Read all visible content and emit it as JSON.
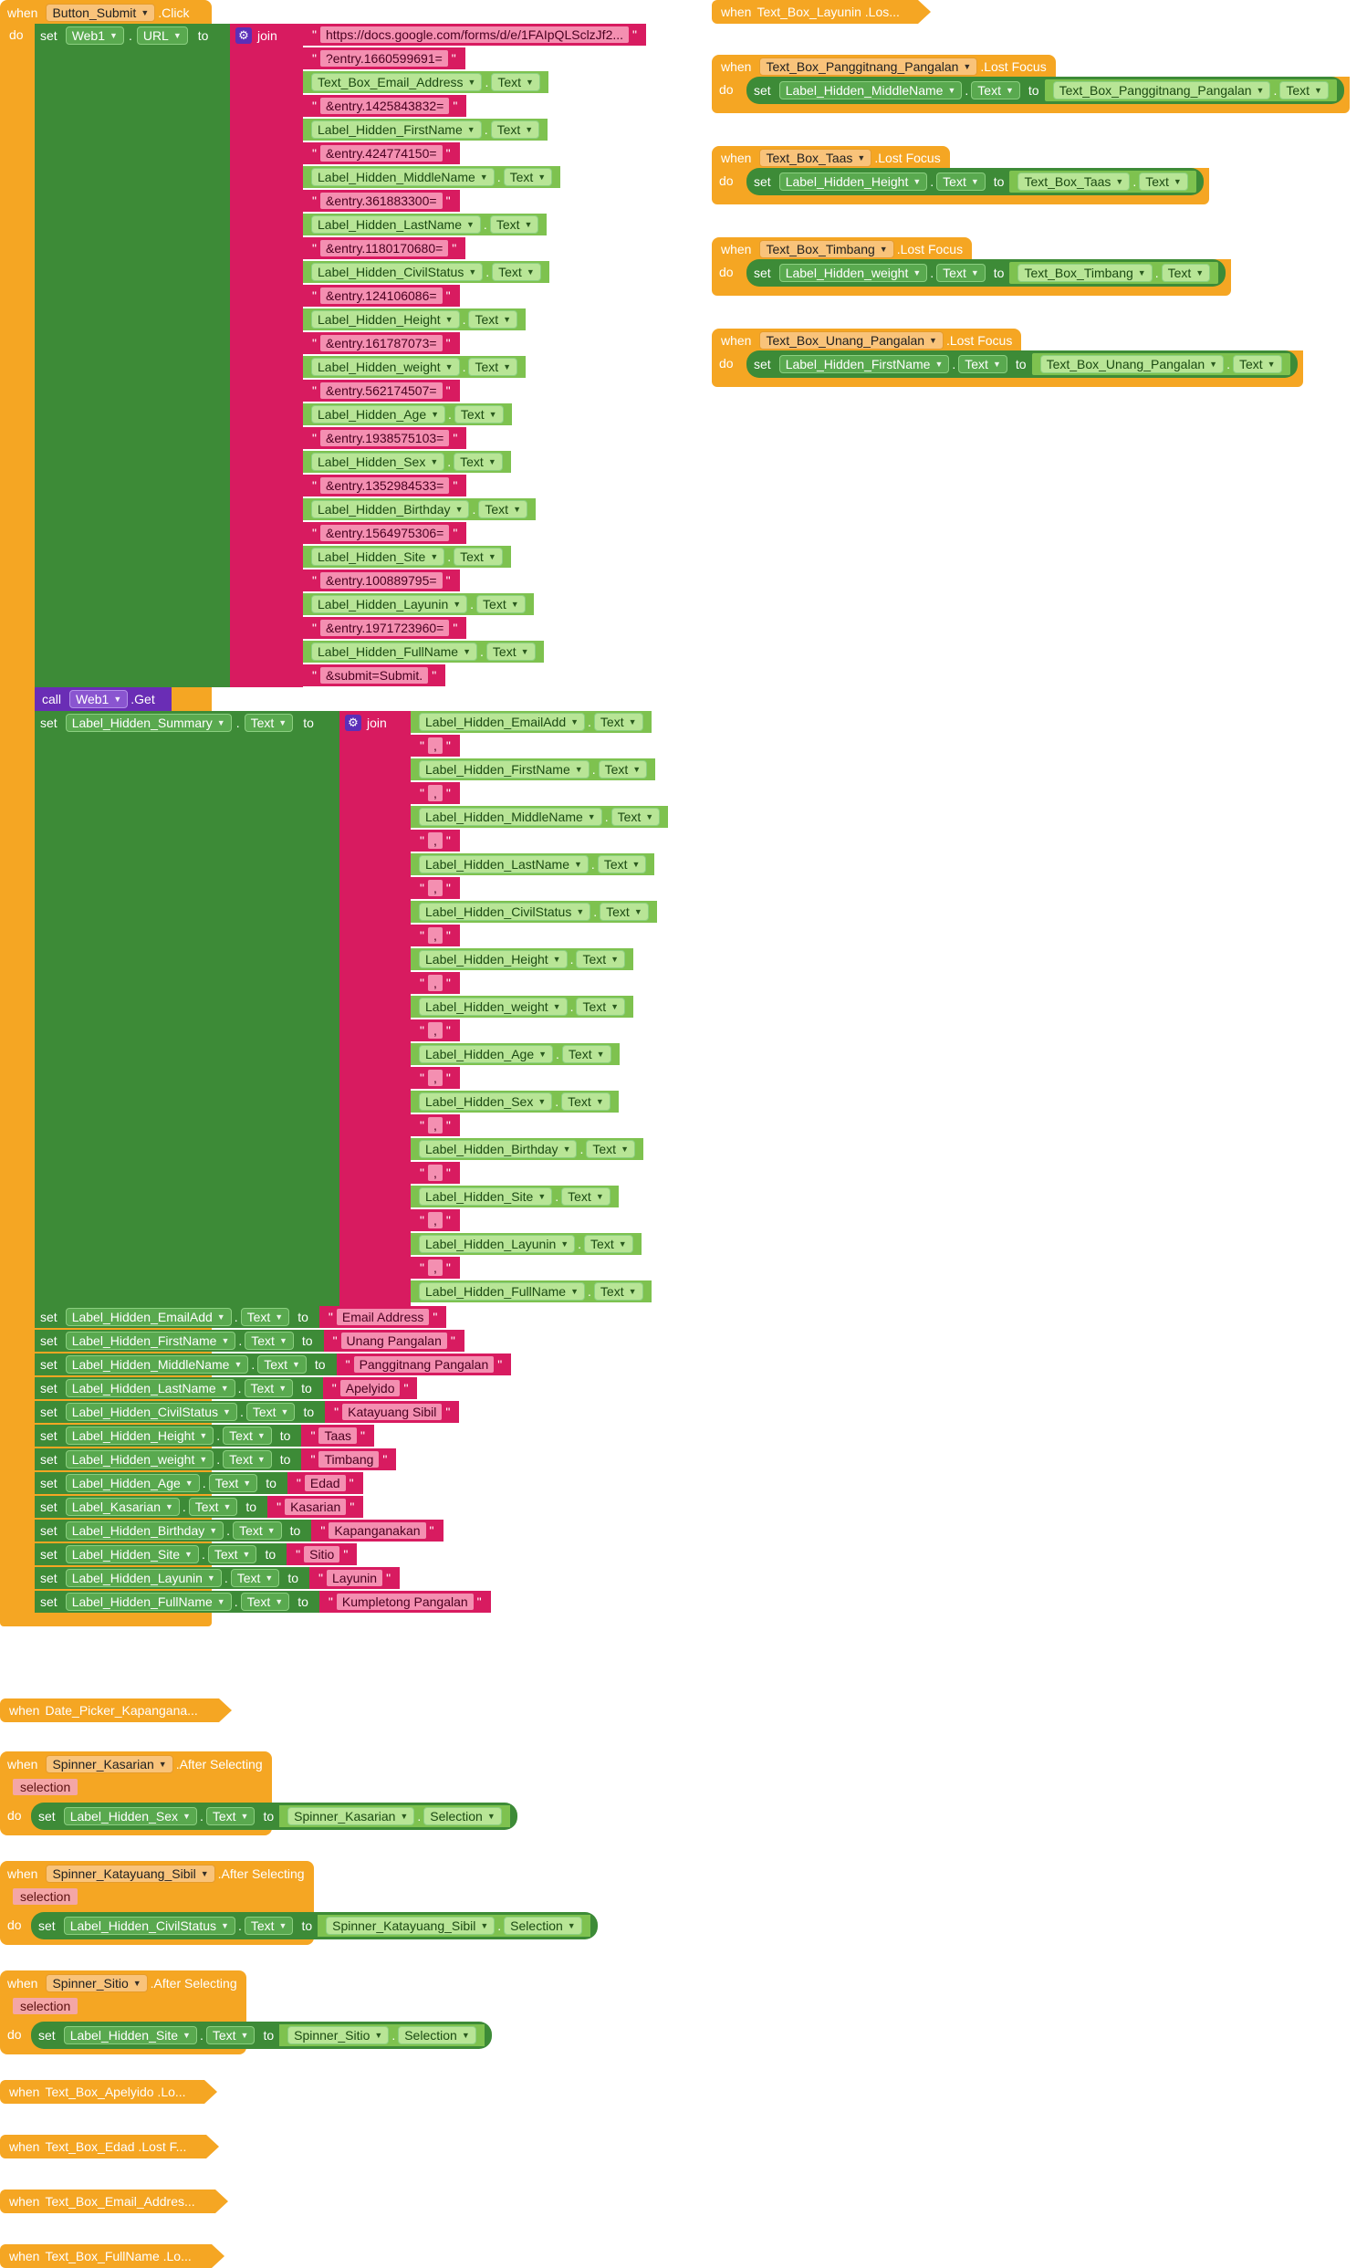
{
  "kw": {
    "when": "when",
    "do": "do",
    "set": "set",
    "to": "to",
    "call": "call",
    "join": "join"
  },
  "submit": {
    "component": "Button_Submit",
    "event": ".Click",
    "web": "Web1",
    "prop": "URL",
    "url_parts": [
      {
        "type": "str",
        "v": "https://docs.google.com/forms/d/e/1FAIpQLSclzJf2..."
      },
      {
        "type": "str",
        "v": "?entry.1660599691="
      },
      {
        "type": "comp",
        "c": "Text_Box_Email_Address",
        "p": "Text"
      },
      {
        "type": "str",
        "v": "&entry.1425843832="
      },
      {
        "type": "comp",
        "c": "Label_Hidden_FirstName",
        "p": "Text"
      },
      {
        "type": "str",
        "v": "&entry.424774150="
      },
      {
        "type": "comp",
        "c": "Label_Hidden_MiddleName",
        "p": "Text"
      },
      {
        "type": "str",
        "v": "&entry.361883300="
      },
      {
        "type": "comp",
        "c": "Label_Hidden_LastName",
        "p": "Text"
      },
      {
        "type": "str",
        "v": "&entry.1180170680="
      },
      {
        "type": "comp",
        "c": "Label_Hidden_CivilStatus",
        "p": "Text"
      },
      {
        "type": "str",
        "v": "&entry.124106086="
      },
      {
        "type": "comp",
        "c": "Label_Hidden_Height",
        "p": "Text"
      },
      {
        "type": "str",
        "v": "&entry.161787073="
      },
      {
        "type": "comp",
        "c": "Label_Hidden_weight",
        "p": "Text"
      },
      {
        "type": "str",
        "v": "&entry.562174507="
      },
      {
        "type": "comp",
        "c": "Label_Hidden_Age",
        "p": "Text"
      },
      {
        "type": "str",
        "v": "&entry.1938575103="
      },
      {
        "type": "comp",
        "c": "Label_Hidden_Sex",
        "p": "Text"
      },
      {
        "type": "str",
        "v": "&entry.1352984533="
      },
      {
        "type": "comp",
        "c": "Label_Hidden_Birthday",
        "p": "Text"
      },
      {
        "type": "str",
        "v": "&entry.1564975306="
      },
      {
        "type": "comp",
        "c": "Label_Hidden_Site",
        "p": "Text"
      },
      {
        "type": "str",
        "v": "&entry.100889795="
      },
      {
        "type": "comp",
        "c": "Label_Hidden_Layunin",
        "p": "Text"
      },
      {
        "type": "str",
        "v": "&entry.1971723960="
      },
      {
        "type": "comp",
        "c": "Label_Hidden_FullName",
        "p": "Text"
      },
      {
        "type": "str",
        "v": "&submit=Submit."
      }
    ],
    "call_method": ".Get",
    "summary_comp": "Label_Hidden_Summary",
    "summary_prop": "Text",
    "summary_parts": [
      {
        "type": "comp",
        "c": "Label_Hidden_EmailAdd",
        "p": "Text"
      },
      {
        "type": "str",
        "v": ","
      },
      {
        "type": "comp",
        "c": "Label_Hidden_FirstName",
        "p": "Text"
      },
      {
        "type": "str",
        "v": ","
      },
      {
        "type": "comp",
        "c": "Label_Hidden_MiddleName",
        "p": "Text"
      },
      {
        "type": "str",
        "v": ","
      },
      {
        "type": "comp",
        "c": "Label_Hidden_LastName",
        "p": "Text"
      },
      {
        "type": "str",
        "v": ","
      },
      {
        "type": "comp",
        "c": "Label_Hidden_CivilStatus",
        "p": "Text"
      },
      {
        "type": "str",
        "v": ","
      },
      {
        "type": "comp",
        "c": "Label_Hidden_Height",
        "p": "Text"
      },
      {
        "type": "str",
        "v": ","
      },
      {
        "type": "comp",
        "c": "Label_Hidden_weight",
        "p": "Text"
      },
      {
        "type": "str",
        "v": ","
      },
      {
        "type": "comp",
        "c": "Label_Hidden_Age",
        "p": "Text"
      },
      {
        "type": "str",
        "v": ","
      },
      {
        "type": "comp",
        "c": "Label_Hidden_Sex",
        "p": "Text"
      },
      {
        "type": "str",
        "v": ","
      },
      {
        "type": "comp",
        "c": "Label_Hidden_Birthday",
        "p": "Text"
      },
      {
        "type": "str",
        "v": ","
      },
      {
        "type": "comp",
        "c": "Label_Hidden_Site",
        "p": "Text"
      },
      {
        "type": "str",
        "v": ","
      },
      {
        "type": "comp",
        "c": "Label_Hidden_Layunin",
        "p": "Text"
      },
      {
        "type": "str",
        "v": ","
      },
      {
        "type": "comp",
        "c": "Label_Hidden_FullName",
        "p": "Text"
      }
    ],
    "resets": [
      {
        "c": "Label_Hidden_EmailAdd",
        "p": "Text",
        "v": "Email Address"
      },
      {
        "c": "Label_Hidden_FirstName",
        "p": "Text",
        "v": "Unang Pangalan"
      },
      {
        "c": "Label_Hidden_MiddleName",
        "p": "Text",
        "v": "Panggitnang Pangalan"
      },
      {
        "c": "Label_Hidden_LastName",
        "p": "Text",
        "v": "Apelyido"
      },
      {
        "c": "Label_Hidden_CivilStatus",
        "p": "Text",
        "v": "Katayuang Sibil"
      },
      {
        "c": "Label_Hidden_Height",
        "p": "Text",
        "v": "Taas"
      },
      {
        "c": "Label_Hidden_weight",
        "p": "Text",
        "v": "Timbang"
      },
      {
        "c": "Label_Hidden_Age",
        "p": "Text",
        "v": "Edad"
      },
      {
        "c": "Label_Kasarian",
        "p": "Text",
        "v": "Kasarian"
      },
      {
        "c": "Label_Hidden_Birthday",
        "p": "Text",
        "v": "Kapanganakan"
      },
      {
        "c": "Label_Hidden_Site",
        "p": "Text",
        "v": "Sitio"
      },
      {
        "c": "Label_Hidden_Layunin",
        "p": "Text",
        "v": "Layunin"
      },
      {
        "c": "Label_Hidden_FullName",
        "p": "Text",
        "v": "Kumpletong Pangalan"
      }
    ]
  },
  "collapsed": {
    "layunin": "Text_Box_Layunin .Los...",
    "datepicker": "Date_Picker_Kapangana...",
    "apelyido": "Text_Box_Apelyido .Lo...",
    "edad": "Text_Box_Edad .Lost F...",
    "email": "Text_Box_Email_Addres...",
    "fullname": "Text_Box_FullName .Lo..."
  },
  "lostfocus": [
    {
      "comp": "Text_Box_Panggitnang_Pangalan",
      "event": ".Lost Focus",
      "target": "Label_Hidden_MiddleName",
      "tp": "Text",
      "src": "Text_Box_Panggitnang_Pangalan",
      "sp": "Text"
    },
    {
      "comp": "Text_Box_Taas",
      "event": ".Lost Focus",
      "target": "Label_Hidden_Height",
      "tp": "Text",
      "src": "Text_Box_Taas",
      "sp": "Text"
    },
    {
      "comp": "Text_Box_Timbang",
      "event": ".Lost Focus",
      "target": "Label_Hidden_weight",
      "tp": "Text",
      "src": "Text_Box_Timbang",
      "sp": "Text"
    },
    {
      "comp": "Text_Box_Unang_Pangalan",
      "event": ".Lost Focus",
      "target": "Label_Hidden_FirstName",
      "tp": "Text",
      "src": "Text_Box_Unang_Pangalan",
      "sp": "Text"
    }
  ],
  "spinners": [
    {
      "comp": "Spinner_Kasarian",
      "event": ".After Selecting",
      "param": "selection",
      "target": "Label_Hidden_Sex",
      "tp": "Text",
      "src": "Spinner_Kasarian",
      "sp": "Selection"
    },
    {
      "comp": "Spinner_Katayuang_Sibil",
      "event": ".After Selecting",
      "param": "selection",
      "target": "Label_Hidden_CivilStatus",
      "tp": "Text",
      "src": "Spinner_Katayuang_Sibil",
      "sp": "Selection"
    },
    {
      "comp": "Spinner_Sitio",
      "event": ".After Selecting",
      "param": "selection",
      "target": "Label_Hidden_Site",
      "tp": "Text",
      "src": "Spinner_Sitio",
      "sp": "Selection"
    }
  ],
  "colors": {
    "event": "#f5a623",
    "set": "#3d8b37",
    "text": "#d81b60",
    "component": "#7ec24f",
    "call": "#6a2db5"
  }
}
